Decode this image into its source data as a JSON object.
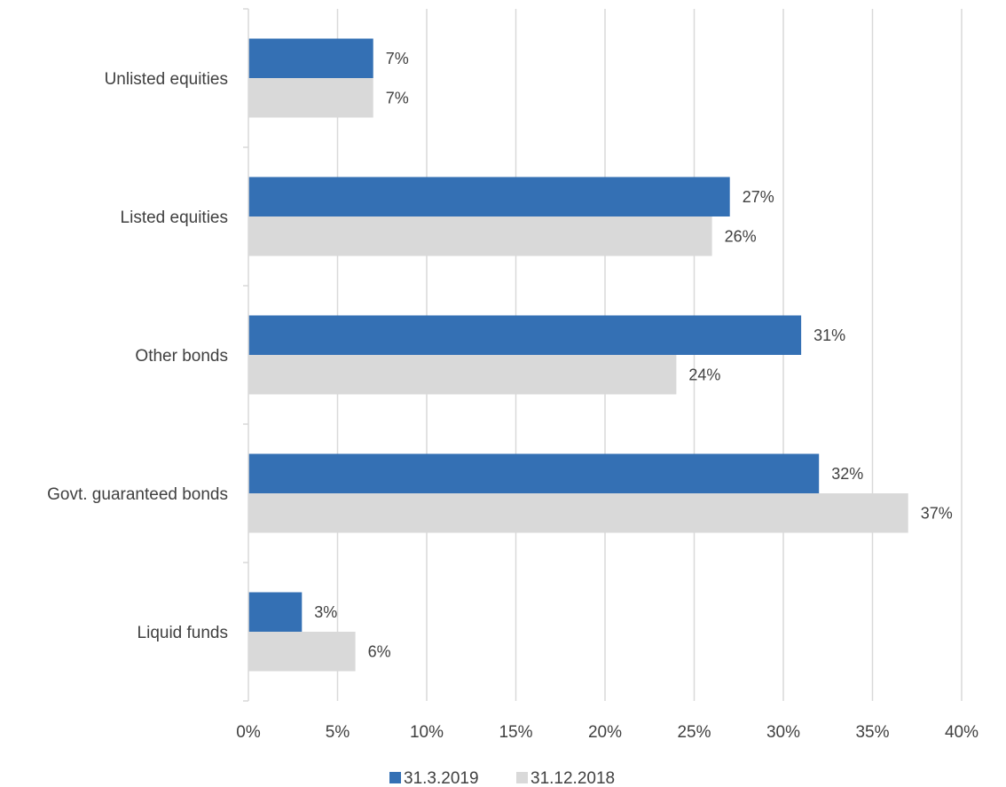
{
  "chart_data": {
    "type": "bar",
    "orientation": "horizontal",
    "title": "",
    "xlabel": "",
    "ylabel": "",
    "categories": [
      "Unlisted equities",
      "Listed equities",
      "Other bonds",
      "Govt. guaranteed bonds",
      "Liquid funds"
    ],
    "series": [
      {
        "name": "31.3.2019",
        "color": "#3470b4",
        "values": [
          7,
          27,
          31,
          32,
          3
        ],
        "labels": [
          "7%",
          "27%",
          "31%",
          "32%",
          "3%"
        ]
      },
      {
        "name": "31.12.2018",
        "color": "#d9d9d9",
        "values": [
          7,
          26,
          24,
          37,
          6
        ],
        "labels": [
          "7%",
          "26%",
          "24%",
          "37%",
          "6%"
        ]
      }
    ],
    "xlim": [
      0,
      40
    ],
    "xticks": [
      0,
      5,
      10,
      15,
      20,
      25,
      30,
      35,
      40
    ],
    "xtick_labels": [
      "0%",
      "5%",
      "10%",
      "15%",
      "20%",
      "25%",
      "30%",
      "35%",
      "40%"
    ],
    "grid": "vertical",
    "legend": "bottom-center",
    "gridline_color": "#d9d9d9"
  }
}
